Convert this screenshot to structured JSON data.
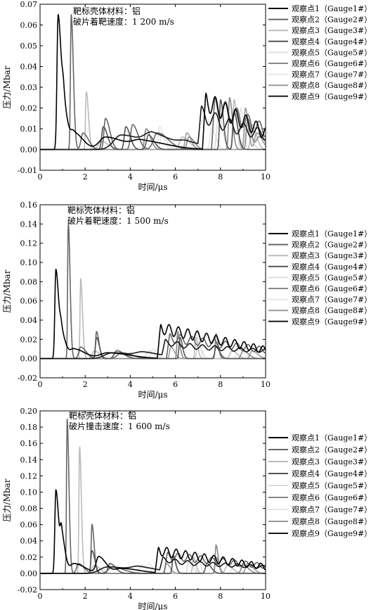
{
  "chart_data": [
    {
      "type": "line",
      "title": "",
      "annotation_lines": [
        "靶标壳体材料：铝",
        "破片着靶速度：1 200 m/s"
      ],
      "xlabel": "时间/μs",
      "ylabel": "压力/Mbar",
      "xlim": [
        0,
        10
      ],
      "ylim": [
        -0.01,
        0.07
      ],
      "xticks": [
        0,
        2,
        4,
        6,
        8,
        10
      ],
      "yticks": [
        -0.01,
        0.0,
        0.01,
        0.02,
        0.03,
        0.04,
        0.05,
        0.06,
        0.07
      ],
      "ytick_labels": [
        "-0.01",
        "0.00",
        "0.01",
        "0.02",
        "0.03",
        "0.04",
        "0.05",
        "0.06",
        "0.07"
      ],
      "grid": false,
      "legend_position": "right",
      "series": [
        {
          "name": "观察点1（Gauge1#）",
          "color": "#000000",
          "peaks": [
            [
              0.8,
              0.065,
              0.09
            ],
            [
              1.05,
              0.018,
              0.12
            ],
            [
              1.5,
              0.008,
              0.25
            ],
            [
              2.9,
              0.006,
              0.5
            ],
            [
              4.5,
              0.004,
              0.7
            ]
          ],
          "tail": [
            {
              "x0": 7.2,
              "x1": 10,
              "a0": 0.024,
              "a1": 0.008,
              "freq": 2.2,
              "amp": 0.005
            }
          ]
        },
        {
          "name": "观察点2（Gauge2#）",
          "color": "#666666",
          "peaks": [
            [
              1.38,
              0.065,
              0.06
            ],
            [
              1.9,
              0.008,
              0.15
            ],
            [
              2.9,
              0.015,
              0.12
            ],
            [
              4.1,
              0.012,
              0.15
            ],
            [
              5.2,
              0.008,
              0.3
            ]
          ],
          "tail": [
            {
              "x0": 7.6,
              "x1": 10,
              "a0": 0.022,
              "a1": 0.009,
              "freq": 2.0,
              "amp": 0.005
            }
          ]
        },
        {
          "name": "观察点3（Gauge3#）",
          "color": "#bbbbbb",
          "peaks": [
            [
              2.05,
              0.028,
              0.06
            ],
            [
              2.7,
              0.004,
              0.2
            ],
            [
              6.3,
              0.006,
              0.2
            ],
            [
              8.6,
              0.024,
              0.08
            ],
            [
              9.4,
              0.012,
              0.12
            ]
          ],
          "tail": []
        },
        {
          "name": "观察点4（Gauge4#）",
          "color": "#555555",
          "peaks": [
            [
              2.8,
              0.011,
              0.12
            ],
            [
              3.8,
              0.011,
              0.12
            ],
            [
              4.8,
              0.007,
              0.15
            ],
            [
              8.0,
              0.024,
              0.08
            ],
            [
              8.6,
              0.018,
              0.1
            ]
          ],
          "tail": []
        },
        {
          "name": "观察点5（Gauge5#）",
          "color": "#dddddd",
          "peaks": [
            [
              3.8,
              0.009,
              0.12
            ],
            [
              5.4,
              0.008,
              0.12
            ],
            [
              7.9,
              0.016,
              0.12
            ],
            [
              9.1,
              0.01,
              0.15
            ]
          ],
          "tail": []
        },
        {
          "name": "观察点6（Gauge6#）",
          "color": "#888888",
          "peaks": [
            [
              4.7,
              0.01,
              0.12
            ],
            [
              6.6,
              0.006,
              0.15
            ],
            [
              8.4,
              0.025,
              0.08
            ],
            [
              9.2,
              0.015,
              0.1
            ],
            [
              9.7,
              0.006,
              0.2
            ]
          ],
          "tail": []
        },
        {
          "name": "观察点7（Gauge7#）",
          "color": "#e6e6e6",
          "peaks": [
            [
              5.3,
              0.011,
              0.1
            ],
            [
              7.6,
              0.01,
              0.12
            ],
            [
              8.9,
              0.02,
              0.08
            ]
          ],
          "tail": []
        },
        {
          "name": "观察点8（Gauge8#）",
          "color": "#9a9a9a",
          "peaks": [
            [
              6.5,
              0.008,
              0.12
            ],
            [
              9.1,
              0.02,
              0.08
            ],
            [
              9.6,
              0.008,
              0.15
            ]
          ],
          "tail": []
        },
        {
          "name": "观察点9（Gauge9#）",
          "color": "#1a1a1a",
          "peaks": [
            [
              3.6,
              0.007,
              0.6
            ],
            [
              5.0,
              0.006,
              0.6
            ],
            [
              6.5,
              0.0025,
              0.6
            ]
          ],
          "tail": [
            {
              "x0": 7.0,
              "x1": 10,
              "a0": 0.015,
              "a1": 0.007,
              "freq": 1.6,
              "amp": 0.004
            }
          ]
        }
      ]
    },
    {
      "type": "line",
      "title": "",
      "annotation_lines": [
        "靶标壳体材料：铝",
        "破片着靶速度：1 500 m/s"
      ],
      "xlabel": "时间/μs",
      "ylabel": "压力/Mbar",
      "xlim": [
        0,
        10
      ],
      "ylim": [
        -0.02,
        0.16
      ],
      "xticks": [
        0,
        2,
        4,
        6,
        8,
        10
      ],
      "yticks": [
        -0.02,
        0.0,
        0.02,
        0.04,
        0.06,
        0.08,
        0.1,
        0.12,
        0.14,
        0.16
      ],
      "ytick_labels": [
        "-0.02",
        "0.00",
        "0.02",
        "0.04",
        "0.06",
        "0.08",
        "0.10",
        "0.12",
        "0.14",
        "0.16"
      ],
      "grid": false,
      "legend_position": "right",
      "series": [
        {
          "name": "观察点1（Gauge1#）",
          "color": "#000000",
          "peaks": [
            [
              0.7,
              0.093,
              0.08
            ],
            [
              0.95,
              0.025,
              0.12
            ],
            [
              1.5,
              0.01,
              0.3
            ],
            [
              3.0,
              0.006,
              0.6
            ]
          ],
          "tail": [
            {
              "x0": 5.2,
              "x1": 10,
              "a0": 0.032,
              "a1": 0.009,
              "freq": 2.4,
              "amp": 0.006
            }
          ]
        },
        {
          "name": "观察点2（Gauge2#）",
          "color": "#666666",
          "peaks": [
            [
              1.25,
              0.142,
              0.05
            ],
            [
              1.8,
              0.012,
              0.15
            ],
            [
              2.5,
              0.028,
              0.07
            ],
            [
              3.6,
              0.006,
              0.3
            ]
          ],
          "tail": [
            {
              "x0": 5.6,
              "x1": 10,
              "a0": 0.022,
              "a1": 0.009,
              "freq": 2.0,
              "amp": 0.005
            }
          ]
        },
        {
          "name": "观察点3（Gauge3#）",
          "color": "#bbbbbb",
          "peaks": [
            [
              1.8,
              0.083,
              0.05
            ],
            [
              2.4,
              0.008,
              0.15
            ],
            [
              6.9,
              0.022,
              0.06
            ],
            [
              8.5,
              0.008,
              0.15
            ]
          ],
          "tail": []
        },
        {
          "name": "观察点4（Gauge4#）",
          "color": "#555555",
          "peaks": [
            [
              2.5,
              0.022,
              0.08
            ],
            [
              3.4,
              0.008,
              0.2
            ],
            [
              6.2,
              0.022,
              0.07
            ],
            [
              7.8,
              0.012,
              0.1
            ]
          ],
          "tail": []
        },
        {
          "name": "观察点5（Gauge5#）",
          "color": "#dddddd",
          "peaks": [
            [
              3.4,
              0.01,
              0.15
            ],
            [
              4.8,
              0.008,
              0.15
            ],
            [
              7.0,
              0.016,
              0.1
            ]
          ],
          "tail": []
        },
        {
          "name": "观察点6（Gauge6#）",
          "color": "#888888",
          "peaks": [
            [
              6.1,
              0.028,
              0.06
            ],
            [
              7.8,
              0.026,
              0.06
            ],
            [
              9.0,
              0.008,
              0.15
            ]
          ],
          "tail": []
        },
        {
          "name": "观察点7（Gauge7#）",
          "color": "#e6e6e6",
          "peaks": [
            [
              5.0,
              0.01,
              0.12
            ],
            [
              7.0,
              0.03,
              0.06
            ],
            [
              8.8,
              0.01,
              0.15
            ]
          ],
          "tail": []
        },
        {
          "name": "观察点8（Gauge8#）",
          "color": "#9a9a9a",
          "peaks": [
            [
              5.8,
              0.012,
              0.1
            ],
            [
              7.8,
              0.016,
              0.08
            ],
            [
              9.4,
              0.008,
              0.15
            ]
          ],
          "tail": []
        },
        {
          "name": "观察点9（Gauge9#）",
          "color": "#1a1a1a",
          "peaks": [
            [
              3.2,
              0.006,
              0.6
            ],
            [
              4.6,
              0.005,
              0.6
            ]
          ],
          "tail": [
            {
              "x0": 5.4,
              "x1": 10,
              "a0": 0.014,
              "a1": 0.008,
              "freq": 1.8,
              "amp": 0.003
            }
          ]
        }
      ]
    },
    {
      "type": "line",
      "title": "",
      "annotation_lines": [
        "靶标壳体材料：铝",
        "破片撞击速度：1 600 m/s"
      ],
      "xlabel": "时间/μs",
      "ylabel": "压力/Mbar",
      "xlim": [
        0,
        10
      ],
      "ylim": [
        -0.02,
        0.2
      ],
      "xticks": [
        0,
        2,
        4,
        6,
        8,
        10
      ],
      "yticks": [
        -0.02,
        0.0,
        0.02,
        0.04,
        0.06,
        0.08,
        0.1,
        0.12,
        0.14,
        0.16,
        0.18,
        0.2
      ],
      "ytick_labels": [
        "-0.02",
        "0.00",
        "0.02",
        "0.04",
        "0.06",
        "0.08",
        "0.10",
        "0.12",
        "0.14",
        "0.16",
        "0.18",
        "0.20"
      ],
      "grid": false,
      "legend_position": "right",
      "series": [
        {
          "name": "观察点1（Gauge1#）",
          "color": "#000000",
          "peaks": [
            [
              0.7,
              0.103,
              0.08
            ],
            [
              0.95,
              0.045,
              0.1
            ],
            [
              1.5,
              0.012,
              0.3
            ],
            [
              2.6,
              0.02,
              0.2
            ],
            [
              3.6,
              0.006,
              0.5
            ]
          ],
          "tail": [
            {
              "x0": 5.1,
              "x1": 10,
              "a0": 0.028,
              "a1": 0.008,
              "freq": 2.4,
              "amp": 0.006
            }
          ]
        },
        {
          "name": "观察点2（Gauge2#）",
          "color": "#666666",
          "peaks": [
            [
              1.2,
              0.19,
              0.05
            ],
            [
              1.7,
              0.012,
              0.15
            ],
            [
              2.3,
              0.06,
              0.06
            ],
            [
              3.2,
              0.008,
              0.3
            ]
          ],
          "tail": [
            {
              "x0": 5.5,
              "x1": 10,
              "a0": 0.022,
              "a1": 0.009,
              "freq": 2.0,
              "amp": 0.005
            }
          ]
        },
        {
          "name": "观察点3（Gauge3#）",
          "color": "#bbbbbb",
          "peaks": [
            [
              1.75,
              0.157,
              0.05
            ],
            [
              2.4,
              0.01,
              0.15
            ],
            [
              6.8,
              0.02,
              0.07
            ],
            [
              8.3,
              0.01,
              0.15
            ]
          ],
          "tail": []
        },
        {
          "name": "观察点4（Gauge4#）",
          "color": "#555555",
          "peaks": [
            [
              2.3,
              0.028,
              0.08
            ],
            [
              3.1,
              0.012,
              0.15
            ],
            [
              5.9,
              0.022,
              0.07
            ],
            [
              7.4,
              0.012,
              0.12
            ]
          ],
          "tail": []
        },
        {
          "name": "观察点5（Gauge5#）",
          "color": "#dddddd",
          "peaks": [
            [
              3.1,
              0.012,
              0.15
            ],
            [
              4.5,
              0.01,
              0.15
            ],
            [
              6.6,
              0.016,
              0.1
            ]
          ],
          "tail": []
        },
        {
          "name": "观察点6（Gauge6#）",
          "color": "#888888",
          "peaks": [
            [
              5.9,
              0.02,
              0.07
            ],
            [
              7.8,
              0.035,
              0.06
            ],
            [
              9.0,
              0.01,
              0.15
            ]
          ],
          "tail": []
        },
        {
          "name": "观察点7（Gauge7#）",
          "color": "#e6e6e6",
          "peaks": [
            [
              4.8,
              0.012,
              0.12
            ],
            [
              7.0,
              0.025,
              0.06
            ],
            [
              8.6,
              0.012,
              0.15
            ]
          ],
          "tail": []
        },
        {
          "name": "观察点8（Gauge8#）",
          "color": "#9a9a9a",
          "peaks": [
            [
              5.6,
              0.012,
              0.1
            ],
            [
              7.8,
              0.02,
              0.08
            ],
            [
              9.2,
              0.012,
              0.15
            ]
          ],
          "tail": []
        },
        {
          "name": "观察点9（Gauge9#）",
          "color": "#1a1a1a",
          "peaks": [
            [
              3.0,
              0.008,
              0.6
            ],
            [
              4.4,
              0.006,
              0.6
            ]
          ],
          "tail": [
            {
              "x0": 5.3,
              "x1": 10,
              "a0": 0.014,
              "a1": 0.008,
              "freq": 1.8,
              "amp": 0.003
            }
          ]
        }
      ]
    }
  ]
}
